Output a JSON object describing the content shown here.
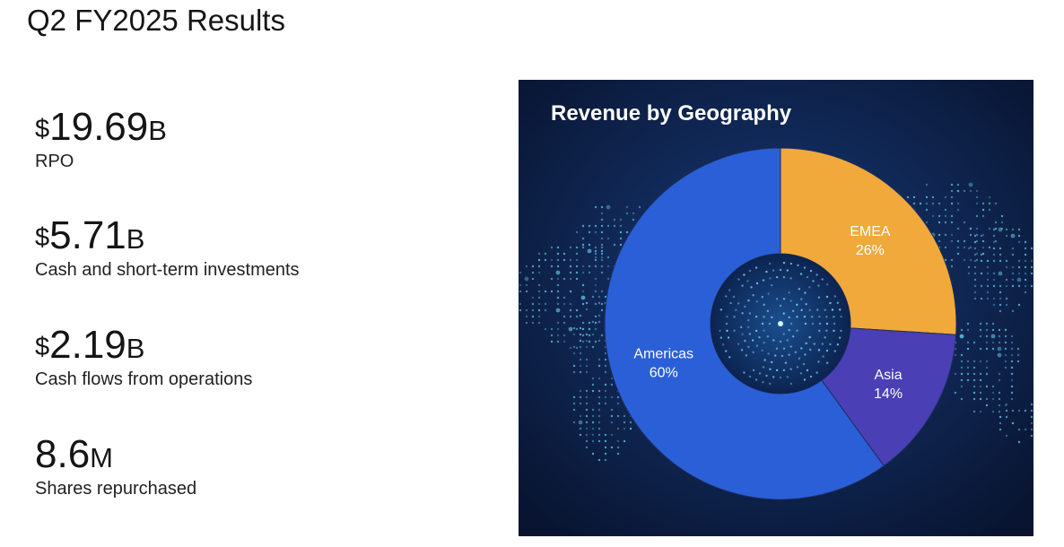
{
  "page": {
    "title": "Q2 FY2025 Results"
  },
  "metrics": [
    {
      "currency": "$",
      "number": "19.69",
      "unit": "B",
      "label": "RPO"
    },
    {
      "currency": "$",
      "number": "5.71",
      "unit": "B",
      "label": "Cash and short-term investments"
    },
    {
      "currency": "$",
      "number": "2.19",
      "unit": "B",
      "label": "Cash flows from operations"
    },
    {
      "currency": "",
      "number": "8.6",
      "unit": "M",
      "label": "Shares repurchased"
    }
  ],
  "chart_data": {
    "type": "pie",
    "variant": "donut",
    "title": "Revenue by Geography",
    "slices": [
      {
        "label": "EMEA",
        "value": 26,
        "display": "26%",
        "color": "#f0a93a"
      },
      {
        "label": "Asia",
        "value": 14,
        "display": "14%",
        "color": "#4a3fb5"
      },
      {
        "label": "Americas",
        "value": 60,
        "display": "60%",
        "color": "#2b5fd8"
      }
    ],
    "background": "#0b1a3f",
    "background_image": "world-map-dots"
  }
}
